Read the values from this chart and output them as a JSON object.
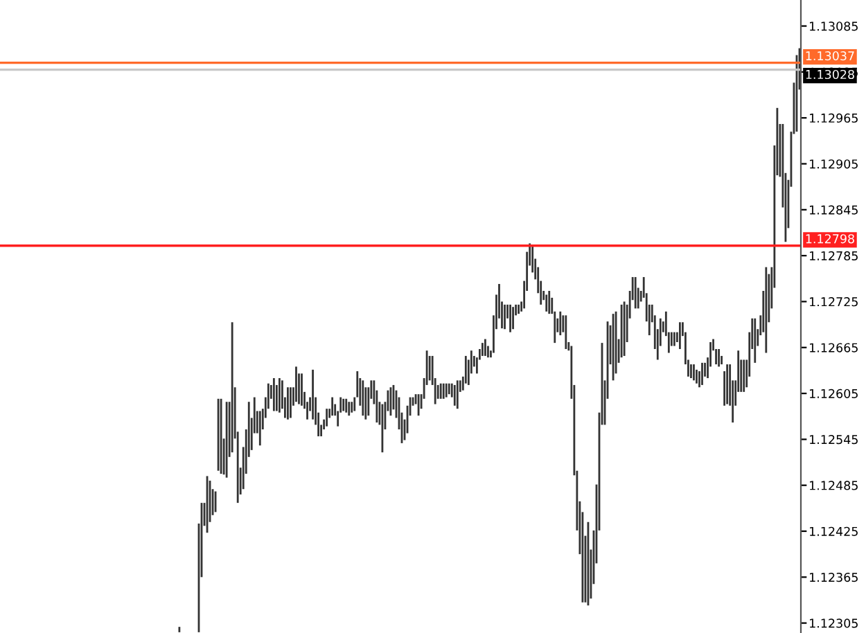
{
  "chart_data": {
    "type": "bar",
    "categories": [
      null,
      null,
      null,
      null,
      null,
      null,
      null,
      null,
      null,
      null,
      null,
      null,
      null,
      null,
      null,
      null,
      null,
      null,
      null,
      null,
      null,
      null,
      null,
      null,
      null,
      null,
      null,
      null,
      null,
      null,
      null,
      null,
      null,
      null,
      null,
      null,
      null,
      null,
      null,
      null,
      null,
      null,
      null,
      null,
      null,
      null,
      null,
      null,
      null,
      null,
      null,
      null,
      null,
      null,
      null,
      null,
      null,
      null,
      null,
      null,
      null,
      null,
      null,
      null,
      null,
      null,
      null,
      null,
      null,
      null,
      null,
      null,
      null,
      null,
      null,
      null,
      null,
      null,
      null,
      null,
      null,
      null,
      null,
      null,
      null,
      null,
      null,
      null,
      null,
      null,
      null,
      null,
      null,
      null,
      null,
      null,
      null,
      null,
      null,
      null,
      null,
      null,
      null,
      null,
      null,
      null,
      null,
      null,
      null,
      null,
      null,
      null,
      null,
      null,
      null,
      null,
      null,
      null,
      null,
      null,
      null,
      null,
      null,
      null,
      null,
      null,
      null,
      null,
      null,
      null,
      null,
      null,
      null,
      null,
      null,
      null,
      null,
      null,
      null,
      null,
      null,
      null,
      null,
      null,
      null,
      null,
      null,
      null,
      null,
      null,
      null,
      null,
      null,
      null,
      null,
      null,
      null,
      null,
      null,
      null,
      null,
      null,
      null,
      null,
      null,
      null,
      null,
      null,
      null,
      null,
      null,
      null,
      null,
      null,
      null,
      null,
      null,
      null,
      null,
      null,
      null,
      null,
      null,
      null,
      null,
      null,
      null,
      null,
      null,
      null,
      null,
      null,
      null,
      null,
      null,
      null,
      null,
      null,
      null,
      null,
      null,
      null,
      null,
      null,
      null,
      null,
      null,
      null,
      null,
      null,
      null,
      null,
      null,
      null,
      null,
      null,
      null,
      null,
      null,
      null,
      null,
      null,
      null,
      null,
      null,
      null,
      null,
      null,
      null,
      null,
      null,
      null,
      null,
      null,
      null,
      null,
      null,
      null,
      null,
      null,
      null,
      null,
      null,
      null,
      null,
      null,
      null,
      null,
      null,
      null,
      null,
      null,
      null,
      null,
      null,
      null,
      null,
      null,
      null,
      null,
      null,
      null,
      null,
      null,
      null,
      null,
      null,
      null,
      null,
      null,
      null,
      null,
      null,
      null,
      null,
      null,
      null,
      null,
      null,
      null,
      null,
      null,
      null,
      null,
      null,
      null,
      null,
      null
    ],
    "base": [
      null,
      null,
      null,
      null,
      null,
      null,
      null,
      null,
      null,
      null,
      null,
      null,
      null,
      null,
      null,
      null,
      null,
      null,
      null,
      null,
      null,
      null,
      null,
      null,
      null,
      null,
      null,
      null,
      null,
      null,
      null,
      null,
      null,
      null,
      null,
      null,
      null,
      null,
      null,
      null,
      null,
      null,
      null,
      null,
      null,
      null,
      null,
      null,
      null,
      null,
      null,
      null,
      null,
      null,
      null,
      null,
      null,
      null,
      null,
      null,
      null,
      null,
      null,
      null,
      1.12293,
      null,
      null,
      null,
      null,
      null,
      null,
      1.12293,
      1.12365,
      1.12432,
      1.12423,
      1.12437,
      1.12446,
      1.1245,
      1.12504,
      1.125,
      1.12499,
      1.12495,
      1.12522,
      1.12528,
      1.12546,
      1.12462,
      1.12473,
      1.1248,
      1.125,
      1.12522,
      1.12531,
      1.12553,
      1.12553,
      1.12537,
      1.12558,
      1.12573,
      1.12585,
      1.12598,
      1.12582,
      1.12582,
      1.1258,
      1.12585,
      1.12573,
      1.12571,
      1.12573,
      1.12589,
      1.12594,
      1.12591,
      1.12589,
      1.12585,
      1.12571,
      1.12582,
      1.12571,
      1.12564,
      1.12549,
      1.12549,
      1.12558,
      1.12562,
      1.12573,
      1.12576,
      1.12576,
      1.12562,
      1.1258,
      1.12582,
      1.1258,
      1.12576,
      1.1258,
      1.12582,
      1.126,
      1.12589,
      1.12576,
      1.12571,
      1.12576,
      1.12598,
      1.12591,
      1.12567,
      1.12564,
      1.12528,
      1.12558,
      1.12582,
      1.12576,
      1.12584,
      1.12573,
      1.12558,
      1.1254,
      1.12544,
      1.12553,
      1.12576,
      1.12589,
      1.12591,
      1.12576,
      1.12585,
      1.12598,
      1.12616,
      1.12622,
      1.12616,
      1.12591,
      1.12598,
      1.12598,
      1.12598,
      1.126,
      1.12604,
      1.126,
      1.12589,
      1.12585,
      1.12607,
      1.12609,
      1.12618,
      1.12616,
      1.12631,
      1.1264,
      1.12631,
      1.12649,
      1.12654,
      1.12654,
      1.12652,
      1.12652,
      1.12658,
      1.12689,
      1.12703,
      1.1269,
      1.12689,
      1.12703,
      1.12685,
      1.12689,
      1.12707,
      1.12709,
      1.12712,
      1.12716,
      1.12739,
      1.12772,
      1.12763,
      1.12754,
      1.12736,
      1.12721,
      1.12727,
      1.12712,
      1.12709,
      1.12709,
      1.12671,
      1.12685,
      1.12681,
      1.12685,
      1.12663,
      1.12661,
      1.12598,
      1.12498,
      1.12426,
      1.12395,
      1.12332,
      1.12332,
      1.12328,
      1.12337,
      1.12356,
      1.12383,
      1.12426,
      1.12564,
      1.12564,
      1.12598,
      1.12643,
      1.12622,
      1.12631,
      1.12645,
      1.12652,
      1.12654,
      1.12672,
      1.12703,
      1.12727,
      1.12716,
      1.12716,
      1.12725,
      1.1273,
      1.12699,
      1.12681,
      1.12698,
      1.12663,
      1.12649,
      1.12667,
      1.12685,
      1.1268,
      1.12658,
      1.12667,
      1.12667,
      1.12672,
      1.12663,
      1.1268,
      1.12643,
      1.12627,
      1.12625,
      1.12622,
      1.12618,
      1.12613,
      1.12616,
      1.12627,
      1.12625,
      1.1264,
      1.12661,
      1.12643,
      1.1264,
      1.12643,
      1.12589,
      1.12591,
      1.12589,
      1.12567,
      1.12589,
      1.12607,
      1.12607,
      1.12607,
      1.12613,
      1.12627,
      1.12663,
      1.12645,
      1.12667,
      1.12681,
      1.12685,
      1.12658,
      1.12698,
      1.12716,
      1.12743,
      1.1289,
      1.12888,
      1.12848,
      1.12803,
      1.12821,
      1.12875,
      1.12944,
      1.12947,
      1.13002
    ],
    "values": [
      null,
      null,
      null,
      null,
      null,
      null,
      null,
      null,
      null,
      null,
      null,
      null,
      null,
      null,
      null,
      null,
      null,
      null,
      null,
      null,
      null,
      null,
      null,
      null,
      null,
      null,
      null,
      null,
      null,
      null,
      null,
      null,
      null,
      null,
      null,
      null,
      null,
      null,
      null,
      null,
      null,
      null,
      null,
      null,
      null,
      null,
      null,
      null,
      null,
      null,
      null,
      null,
      null,
      null,
      null,
      null,
      null,
      null,
      null,
      null,
      null,
      null,
      null,
      null,
      7e-05,
      null,
      null,
      null,
      null,
      null,
      null,
      0.00142,
      0.00097,
      0.0003,
      0.00074,
      0.00054,
      0.00034,
      0.00027,
      0.00094,
      0.00098,
      0.00047,
      0.00099,
      0.00072,
      0.0017,
      0.00067,
      0.00093,
      0.00035,
      0.00055,
      0.00058,
      0.00072,
      0.00042,
      0.00047,
      0.00029,
      0.00045,
      0.00027,
      0.00027,
      0.00033,
      0.00018,
      0.00043,
      0.00034,
      0.00045,
      0.00037,
      0.00027,
      0.00042,
      0.0004,
      0.00024,
      0.00046,
      0.0004,
      0.00042,
      0.00022,
      0.00023,
      0.00018,
      0.00065,
      0.00036,
      0.00031,
      0.00015,
      0.00013,
      0.00023,
      0.00012,
      0.00024,
      0.00015,
      0.0002,
      0.0002,
      0.00016,
      0.00018,
      0.00018,
      0.00014,
      0.00018,
      0.00034,
      0.00036,
      0.00046,
      0.00042,
      0.00037,
      0.00024,
      0.00031,
      0.00042,
      0.0003,
      0.00063,
      0.00036,
      0.00027,
      0.00037,
      0.00032,
      0.00036,
      0.00042,
      0.0004,
      0.00027,
      0.00036,
      0.00024,
      0.00011,
      0.00013,
      0.00028,
      0.00019,
      0.00027,
      0.00045,
      0.00032,
      0.00038,
      0.00034,
      0.00018,
      0.0002,
      0.0002,
      0.00018,
      0.00014,
      0.00018,
      0.00027,
      0.00037,
      0.00015,
      0.00018,
      0.00036,
      0.00033,
      0.0003,
      0.00014,
      0.00021,
      0.00014,
      0.00017,
      0.00022,
      0.00015,
      9e-05,
      0.00049,
      0.00045,
      0.00045,
      0.00035,
      0.00032,
      0.00018,
      0.00036,
      0.00029,
      0.00014,
      0.00012,
      0.00013,
      0.00036,
      0.00051,
      0.00029,
      0.00034,
      0.00027,
      0.00034,
      0.00031,
      0.00012,
      0.00022,
      0.0003,
      0.00021,
      0.00041,
      0.00018,
      0.00031,
      0.00022,
      0.00044,
      0.00011,
      0.00069,
      0.00118,
      0.00078,
      0.00069,
      0.00118,
      0.00087,
      0.00109,
      0.00064,
      0.0007,
      0.00103,
      0.00154,
      0.00107,
      0.00058,
      0.00101,
      0.00051,
      0.00087,
      0.00081,
      0.00031,
      0.00069,
      0.00071,
      0.00049,
      0.00036,
      0.0003,
      0.00041,
      0.00027,
      0.00014,
      0.00027,
      0.00037,
      0.0004,
      0.00023,
      0.00044,
      0.0004,
      0.00036,
      0.00014,
      0.00032,
      0.00027,
      0.00018,
      0.00018,
      0.00013,
      0.00035,
      0.00018,
      0.00042,
      0.00022,
      0.00018,
      0.00021,
      0.00018,
      0.00021,
      0.00029,
      0.00018,
      0.00027,
      0.00032,
      0.00015,
      0.0002,
      0.00023,
      0.00011,
      0.00045,
      0.00052,
      0.00054,
      0.00055,
      0.00033,
      0.00054,
      0.00042,
      0.00042,
      0.00036,
      0.00058,
      0.0004,
      0.00058,
      0.00022,
      0.00026,
      0.00054,
      0.00112,
      0.00063,
      0.00054,
      0.00186,
      0.00088,
      0.00069,
      0.00109,
      0.0009,
      0.00063,
      0.00072,
      0.00067,
      0.001,
      0.00054
    ],
    "color": "#333333",
    "ylim": [
      1.12292,
      1.13119
    ],
    "yticks": [
      1.12305,
      1.12365,
      1.12425,
      1.12485,
      1.12545,
      1.12605,
      1.12665,
      1.12725,
      1.12785,
      1.12845,
      1.12905,
      1.12965,
      1.13025,
      1.13085
    ],
    "tick_labels": "y",
    "ref_lines": [
      {
        "axis": "y",
        "value": 1.12798,
        "label": "1.12798",
        "color": "#ff2020"
      },
      {
        "axis": "y",
        "value": 1.13037,
        "label": "1.13037",
        "color": "#ff6a2a"
      },
      {
        "axis": "y",
        "value": 1.13028,
        "label": "1.13028",
        "color": "#c8c8c8"
      }
    ]
  }
}
